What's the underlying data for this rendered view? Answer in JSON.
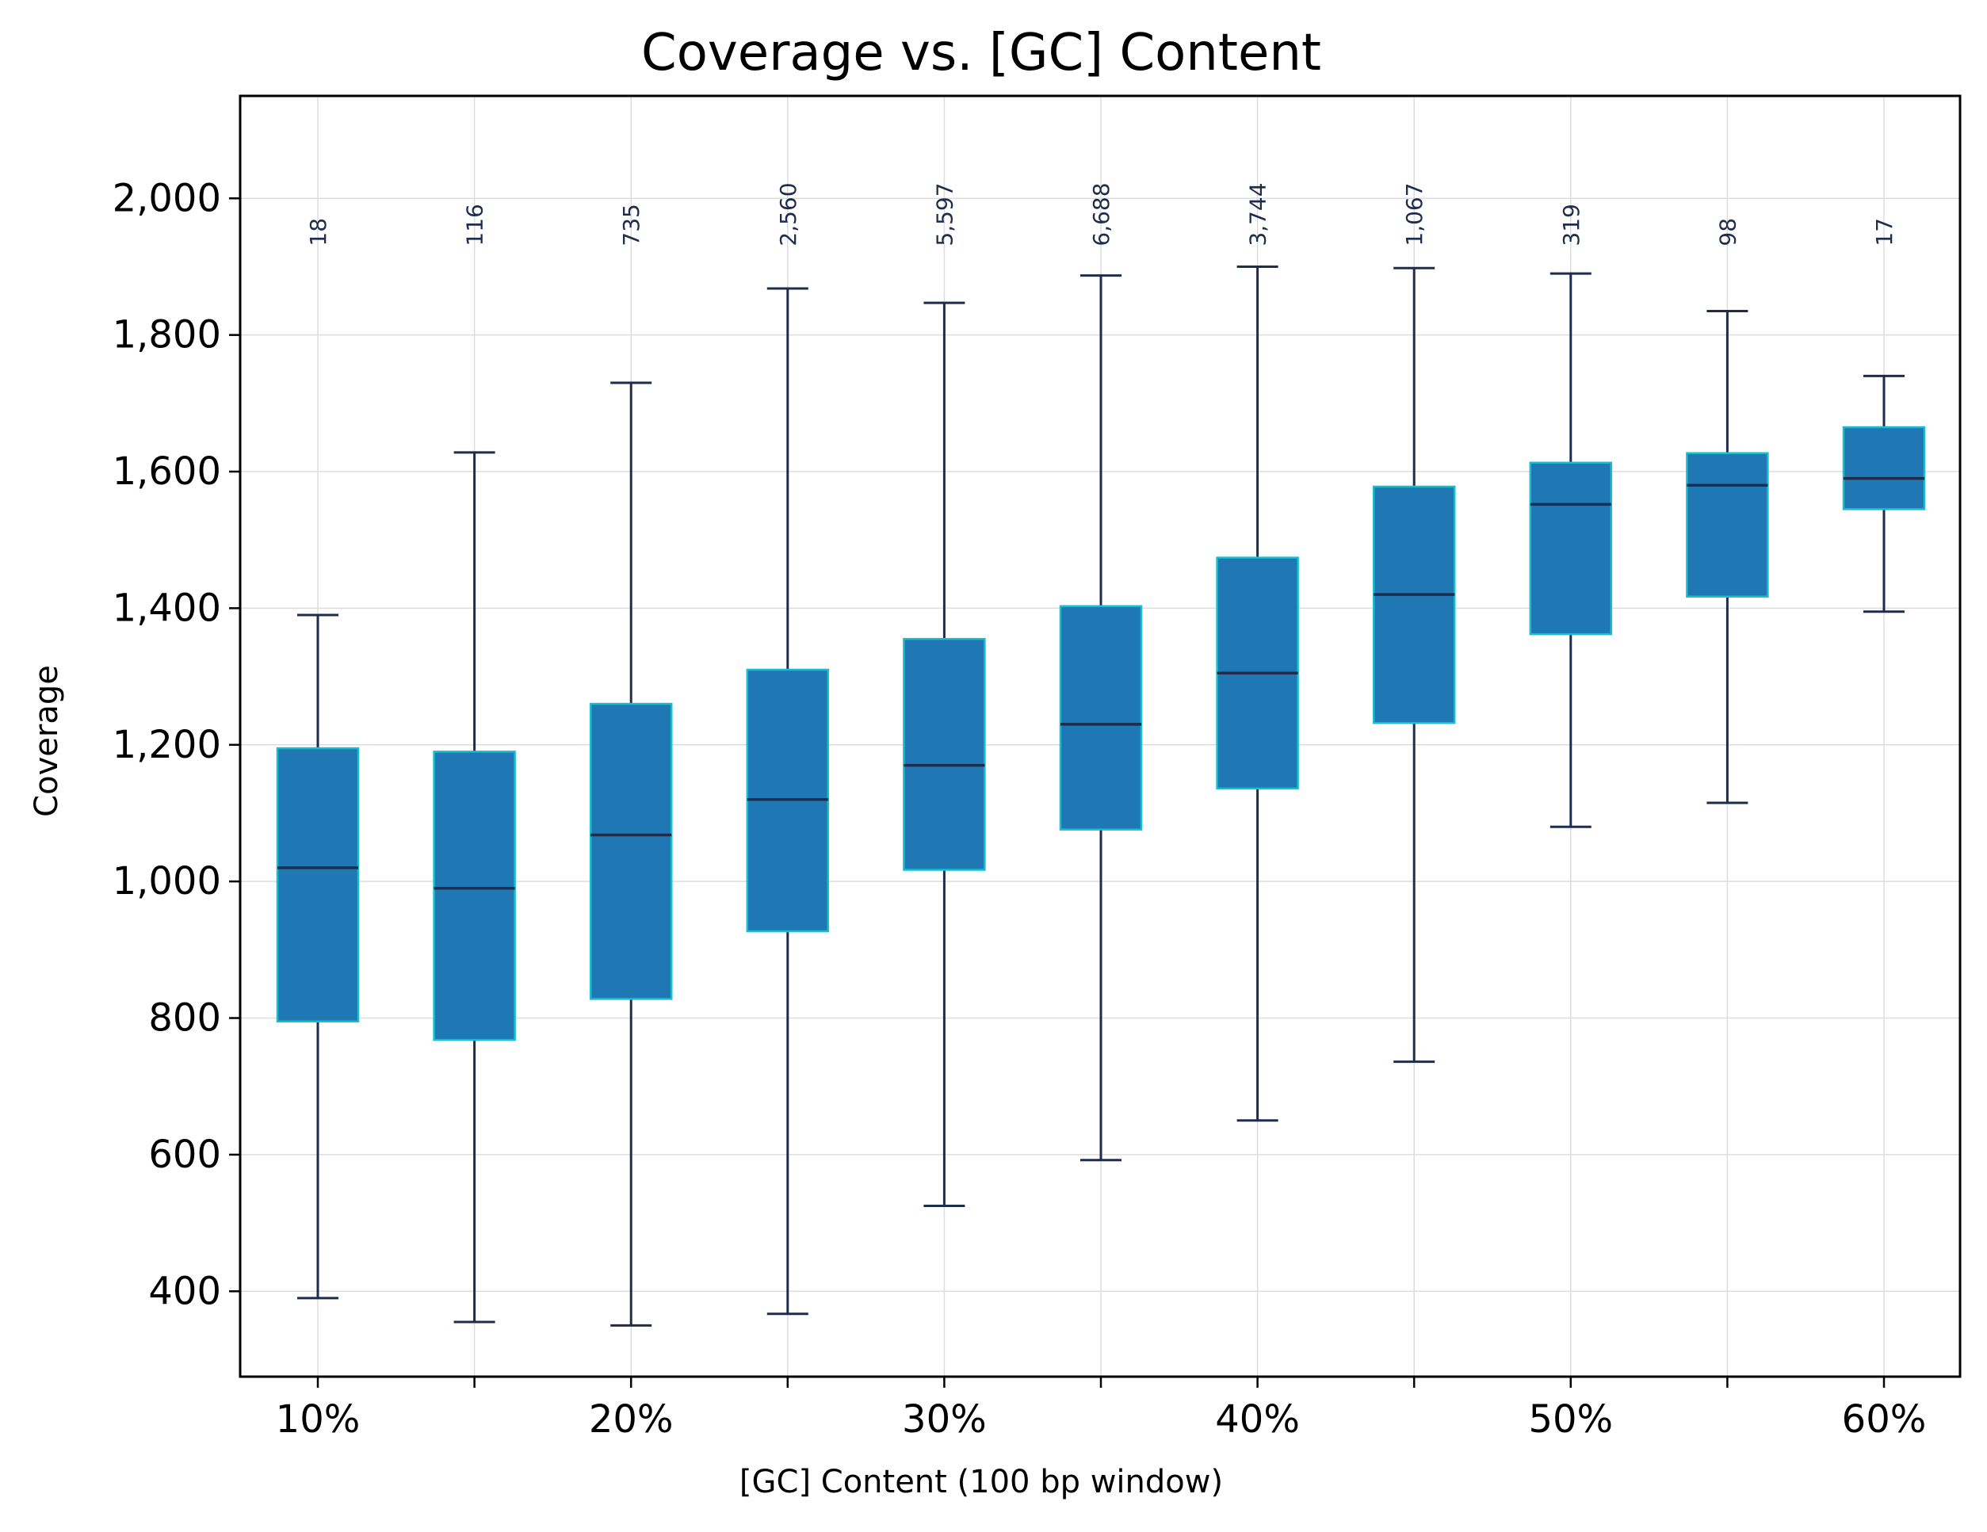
{
  "chart_data": {
    "type": "box",
    "title": "Coverage vs. [GC] Content",
    "xlabel": "[GC] Content (100 bp window)",
    "ylabel": "Coverage",
    "ylim": [
      275,
      2150
    ],
    "grid": true,
    "yticks": [
      400,
      600,
      800,
      1000,
      1200,
      1400,
      1600,
      1800,
      2000
    ],
    "ytick_labels": [
      "400",
      "600",
      "800",
      "1,000",
      "1,200",
      "1,400",
      "1,600",
      "1,800",
      "2,000"
    ],
    "xticks_labeled": [
      "10%",
      "20%",
      "30%",
      "40%",
      "50%",
      "60%"
    ],
    "box_color": "#1f77b4",
    "box_edge_color": "#17becf",
    "line_color": "#1f2d4d",
    "grid_color": "#dddddd",
    "count_label_y": 1930,
    "boxes": [
      {
        "x": "10%",
        "count_label": "18",
        "whisker_low": 390,
        "q1": 795,
        "median": 1020,
        "q3": 1195,
        "whisker_high": 1390
      },
      {
        "x": "15%",
        "count_label": "116",
        "whisker_low": 355,
        "q1": 768,
        "median": 990,
        "q3": 1190,
        "whisker_high": 1628
      },
      {
        "x": "20%",
        "count_label": "735",
        "whisker_low": 350,
        "q1": 828,
        "median": 1068,
        "q3": 1260,
        "whisker_high": 1730
      },
      {
        "x": "25%",
        "count_label": "2,560",
        "whisker_low": 367,
        "q1": 927,
        "median": 1120,
        "q3": 1310,
        "whisker_high": 1868
      },
      {
        "x": "30%",
        "count_label": "5,597",
        "whisker_low": 525,
        "q1": 1017,
        "median": 1170,
        "q3": 1355,
        "whisker_high": 1847
      },
      {
        "x": "35%",
        "count_label": "6,688",
        "whisker_low": 592,
        "q1": 1076,
        "median": 1230,
        "q3": 1403,
        "whisker_high": 1887
      },
      {
        "x": "40%",
        "count_label": "3,744",
        "whisker_low": 650,
        "q1": 1136,
        "median": 1305,
        "q3": 1474,
        "whisker_high": 1900
      },
      {
        "x": "45%",
        "count_label": "1,067",
        "whisker_low": 736,
        "q1": 1232,
        "median": 1420,
        "q3": 1578,
        "whisker_high": 1898
      },
      {
        "x": "50%",
        "count_label": "319",
        "whisker_low": 1080,
        "q1": 1362,
        "median": 1552,
        "q3": 1613,
        "whisker_high": 1890
      },
      {
        "x": "55%",
        "count_label": "98",
        "whisker_low": 1115,
        "q1": 1417,
        "median": 1580,
        "q3": 1627,
        "whisker_high": 1835
      },
      {
        "x": "60%",
        "count_label": "17",
        "whisker_low": 1395,
        "q1": 1545,
        "median": 1590,
        "q3": 1665,
        "whisker_high": 1740
      }
    ]
  }
}
